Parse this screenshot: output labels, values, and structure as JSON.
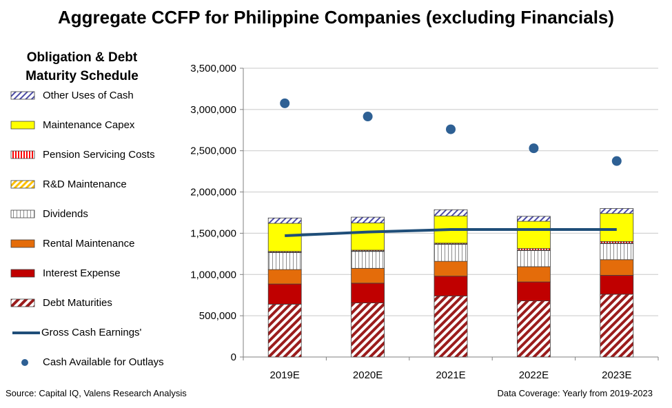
{
  "title": "Aggregate CCFP for Philippine Companies (excluding Financials)",
  "legend_title_line1": "Obligation & Debt",
  "legend_title_line2": "Maturity Schedule",
  "source": "Source: Capital IQ, Valens Research Analysis",
  "coverage": "Data Coverage: Yearly from 2019-2023",
  "chart_data": {
    "type": "bar",
    "stacked": true,
    "categories": [
      "2019E",
      "2020E",
      "2021E",
      "2022E",
      "2023E"
    ],
    "ylim": [
      0,
      3500000
    ],
    "yticks": [
      0,
      500000,
      1000000,
      1500000,
      2000000,
      2500000,
      3000000,
      3500000
    ],
    "ytick_labels": [
      "0",
      "500,000",
      "1,000,000",
      "1,500,000",
      "2,000,000",
      "2,500,000",
      "3,000,000",
      "3,500,000"
    ],
    "grid": "horizontal",
    "legend_position": "left",
    "series": [
      {
        "name": "Debt Maturities",
        "values": [
          640000,
          655000,
          740000,
          680000,
          760000
        ],
        "color": "#9b1c1c",
        "pattern": "diag-red"
      },
      {
        "name": "Interest Expense",
        "values": [
          245000,
          240000,
          240000,
          230000,
          230000
        ],
        "color": "#c00000",
        "pattern": "solid"
      },
      {
        "name": "Rental Maintenance",
        "values": [
          175000,
          180000,
          180000,
          185000,
          190000
        ],
        "color": "#e46c0a",
        "pattern": "solid"
      },
      {
        "name": "Dividends",
        "values": [
          205000,
          205000,
          205000,
          195000,
          195000
        ],
        "color": "#bfbfbf",
        "pattern": "vertical"
      },
      {
        "name": "R&D Maintenance",
        "values": [
          5000,
          5000,
          5000,
          5000,
          5000
        ],
        "color": "#ffc000",
        "pattern": "diag-yellow"
      },
      {
        "name": "Pension Servicing Costs",
        "values": [
          10000,
          10000,
          10000,
          20000,
          20000
        ],
        "color": "#ff0000",
        "pattern": "vertical-red"
      },
      {
        "name": "Maintenance Capex",
        "values": [
          340000,
          330000,
          330000,
          330000,
          340000
        ],
        "color": "#ffff00",
        "pattern": "solid"
      },
      {
        "name": "Other Uses of Cash",
        "values": [
          65000,
          70000,
          75000,
          60000,
          60000
        ],
        "color": "#7f7fbf",
        "pattern": "diag-blue"
      }
    ],
    "line_series": {
      "name": "Gross Cash Earnings'",
      "values": [
        1470000,
        1515000,
        1545000,
        1545000,
        1545000
      ],
      "color": "#1f4e79"
    },
    "scatter_series": {
      "name": "Cash Available for Outlays",
      "values": [
        3075000,
        2915000,
        2760000,
        2530000,
        2375000
      ],
      "color": "#2e6094"
    }
  },
  "legend": [
    {
      "label": "Other Uses of Cash",
      "pattern": "diag-blue"
    },
    {
      "label": "Maintenance Capex",
      "pattern": "solid-yellow"
    },
    {
      "label": "Pension Servicing Costs",
      "pattern": "vertical-red"
    },
    {
      "label": "R&D Maintenance",
      "pattern": "diag-yellow"
    },
    {
      "label": "Dividends",
      "pattern": "vertical"
    },
    {
      "label": "Rental Maintenance",
      "pattern": "solid-orange"
    },
    {
      "label": "Interest Expense",
      "pattern": "solid-red"
    },
    {
      "label": "Debt Maturities",
      "pattern": "diag-red"
    },
    {
      "label": "Gross Cash Earnings'",
      "pattern": "line"
    },
    {
      "label": "Cash Available for Outlays",
      "pattern": "dot"
    }
  ]
}
